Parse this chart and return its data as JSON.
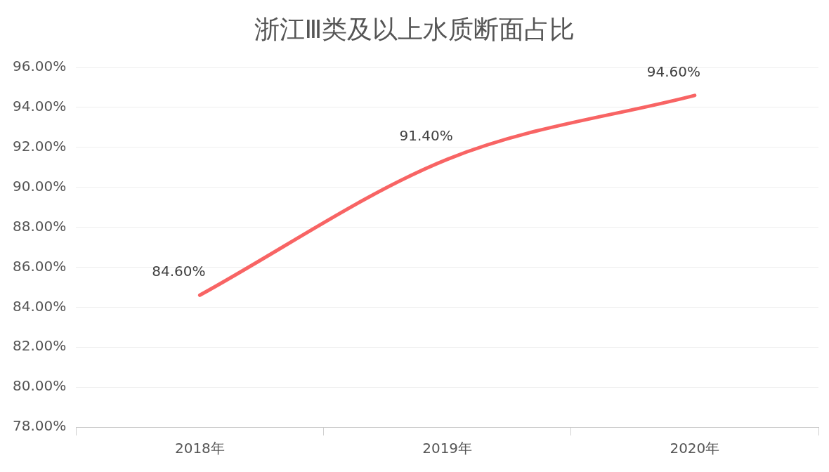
{
  "chart_data": {
    "type": "line",
    "title": "浙江Ⅲ类及以上水质断面占比",
    "categories": [
      "2018年",
      "2019年",
      "2020年"
    ],
    "series": [
      {
        "color": "#f86464",
        "values": [
          84.6,
          91.4,
          94.6
        ],
        "value_labels": [
          "84.60%",
          "91.40%",
          "94.60%"
        ]
      }
    ],
    "ylim": [
      78,
      96
    ],
    "yticks": [
      {
        "value": 78,
        "label": "78.00%"
      },
      {
        "value": 80,
        "label": "80.00%"
      },
      {
        "value": 82,
        "label": "82.00%"
      },
      {
        "value": 84,
        "label": "84.00%"
      },
      {
        "value": 86,
        "label": "86.00%"
      },
      {
        "value": 88,
        "label": "88.00%"
      },
      {
        "value": 90,
        "label": "90.00%"
      },
      {
        "value": 92,
        "label": "92.00%"
      },
      {
        "value": 94,
        "label": "94.00%"
      },
      {
        "value": 96,
        "label": "96.00%"
      }
    ],
    "grid": "y",
    "legend": false,
    "marker": "none",
    "line_style": "solid"
  }
}
